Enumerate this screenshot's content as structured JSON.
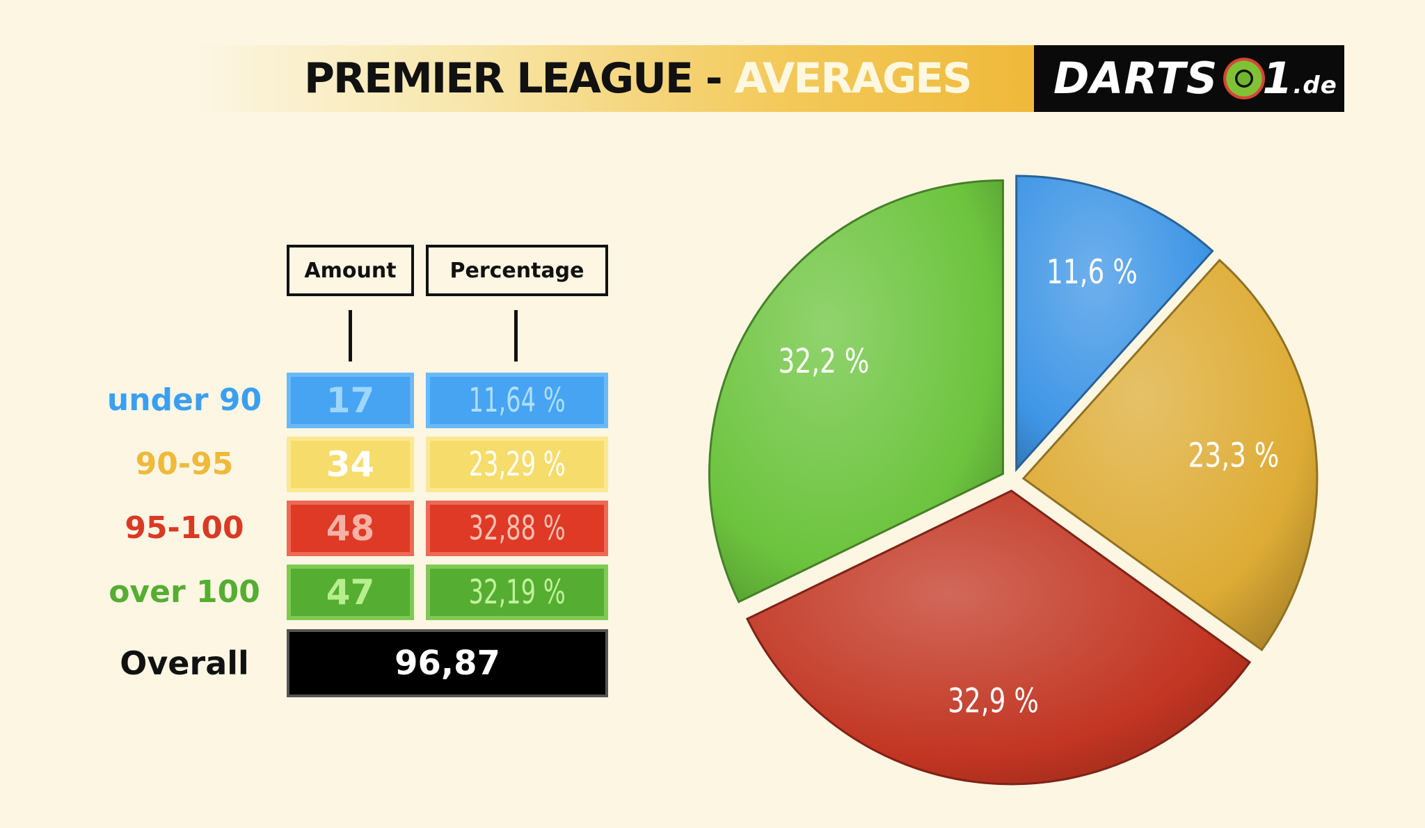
{
  "header": {
    "title_main": "PREMIER LEAGUE",
    "title_sep": " - ",
    "title_accent": "AVERAGES",
    "logo_text": "DARTS",
    "logo_text2": "1",
    "logo_tld": ".de"
  },
  "table": {
    "col_amount": "Amount",
    "col_percentage": "Percentage",
    "rows": [
      {
        "label": "under 90",
        "amount": "17",
        "percentage": "11,64 %"
      },
      {
        "label": "90-95",
        "amount": "34",
        "percentage": "23,29 %"
      },
      {
        "label": "95-100",
        "amount": "48",
        "percentage": "32,88 %"
      },
      {
        "label": "over 100",
        "amount": "47",
        "percentage": "32,19 %"
      }
    ],
    "overall_label": "Overall",
    "overall_value": "96,87"
  },
  "colors": {
    "blue": "#46a4f2",
    "yellow": "#f6dc6a",
    "red": "#de3a26",
    "green": "#55ad31",
    "label_blue": "#3a9ff0",
    "label_yellow": "#efb93a",
    "label_red": "#d93a25",
    "label_green": "#55ad31"
  },
  "chart_data": {
    "type": "pie",
    "slices": [
      {
        "label": "11,6 %",
        "value": 11.64,
        "color": "#3f96e6"
      },
      {
        "label": "23,3 %",
        "value": 23.29,
        "color": "#deac35"
      },
      {
        "label": "32,9 %",
        "value": 32.88,
        "color": "#c23522"
      },
      {
        "label": "32,2 %",
        "value": 32.19,
        "color": "#6cc43e"
      }
    ]
  }
}
